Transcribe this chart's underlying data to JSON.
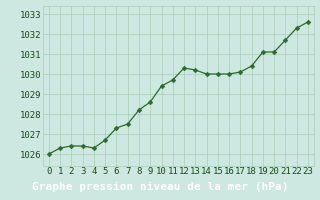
{
  "x": [
    0,
    1,
    2,
    3,
    4,
    5,
    6,
    7,
    8,
    9,
    10,
    11,
    12,
    13,
    14,
    15,
    16,
    17,
    18,
    19,
    20,
    21,
    22,
    23
  ],
  "y": [
    1026.0,
    1026.3,
    1026.4,
    1026.4,
    1026.3,
    1026.7,
    1027.3,
    1027.5,
    1028.2,
    1028.6,
    1029.4,
    1029.7,
    1030.3,
    1030.2,
    1030.0,
    1030.0,
    1030.0,
    1030.1,
    1030.4,
    1031.1,
    1031.1,
    1031.7,
    1032.3,
    1032.6
  ],
  "line_color": "#2d6a2d",
  "marker": "D",
  "marker_size": 2.5,
  "bg_color": "#cce8e0",
  "plot_bg_color": "#cce8e0",
  "grid_color": "#aaccbb",
  "bottom_bar_color": "#2d6a2d",
  "xlabel": "Graphe pression niveau de la mer (hPa)",
  "xlabel_color": "#ffffff",
  "xlabel_bg": "#2d6a2d",
  "tick_color": "#1a4a1a",
  "tick_fontsize": 6.5,
  "xlabel_fontsize": 8,
  "ytick_labels": [
    "1026",
    "1027",
    "1028",
    "1029",
    "1030",
    "1031",
    "1032",
    "1033"
  ],
  "ytick_values": [
    1026,
    1027,
    1028,
    1029,
    1030,
    1031,
    1032,
    1033
  ],
  "ylim": [
    1025.4,
    1033.4
  ],
  "xlim": [
    -0.5,
    23.5
  ],
  "xtick_values": [
    0,
    1,
    2,
    3,
    4,
    5,
    6,
    7,
    8,
    9,
    10,
    11,
    12,
    13,
    14,
    15,
    16,
    17,
    18,
    19,
    20,
    21,
    22,
    23
  ]
}
